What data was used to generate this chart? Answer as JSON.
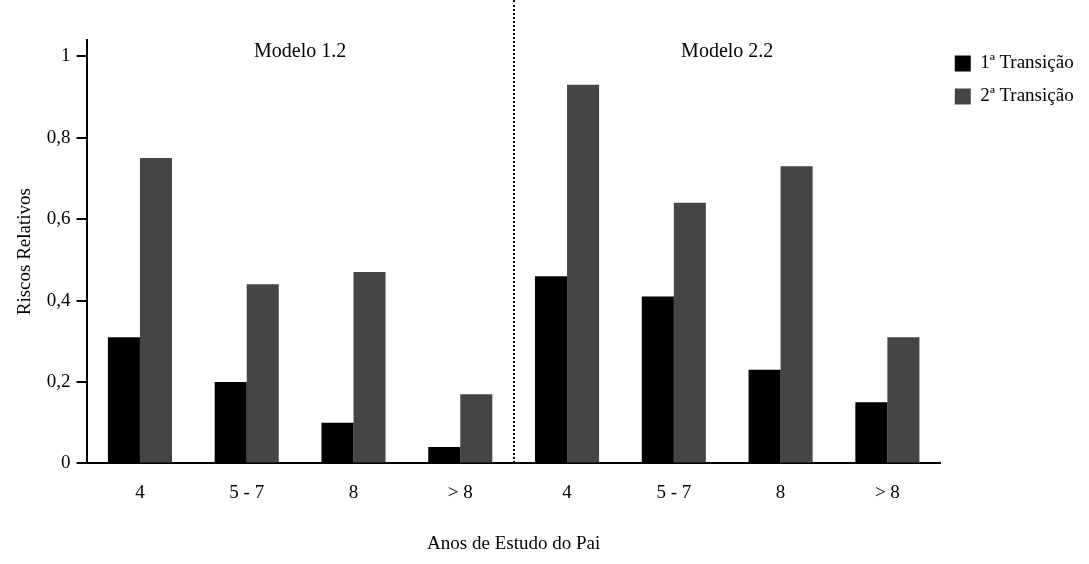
{
  "chart_data": {
    "type": "bar",
    "xlabel": "Anos de Estudo do Pai",
    "ylabel": "Riscos Relativos",
    "categories": [
      "4",
      "5 - 7",
      "8",
      "> 8",
      "4",
      "5 - 7",
      "8",
      "> 8"
    ],
    "series": [
      {
        "name": "1ª Transição",
        "color": "#000000",
        "values": [
          0.31,
          0.2,
          0.1,
          0.04,
          0.46,
          0.41,
          0.23,
          0.15
        ]
      },
      {
        "name": "2ª Transição",
        "color": "#454545",
        "values": [
          0.75,
          0.44,
          0.47,
          0.17,
          0.93,
          0.64,
          0.73,
          0.31
        ]
      }
    ],
    "ylim": [
      0,
      1.04
    ],
    "yticks": [
      0,
      {
        "value": 0.2,
        "label": "0,2"
      },
      {
        "value": 0.4,
        "label": "0,4"
      },
      {
        "value": 0.6,
        "label": "0,6"
      },
      {
        "value": 0.8,
        "label": "0,8"
      },
      1
    ],
    "annotations": [
      "Modelo 1.2",
      "Modelo 2.2"
    ],
    "grid": false,
    "legend": "top right"
  }
}
